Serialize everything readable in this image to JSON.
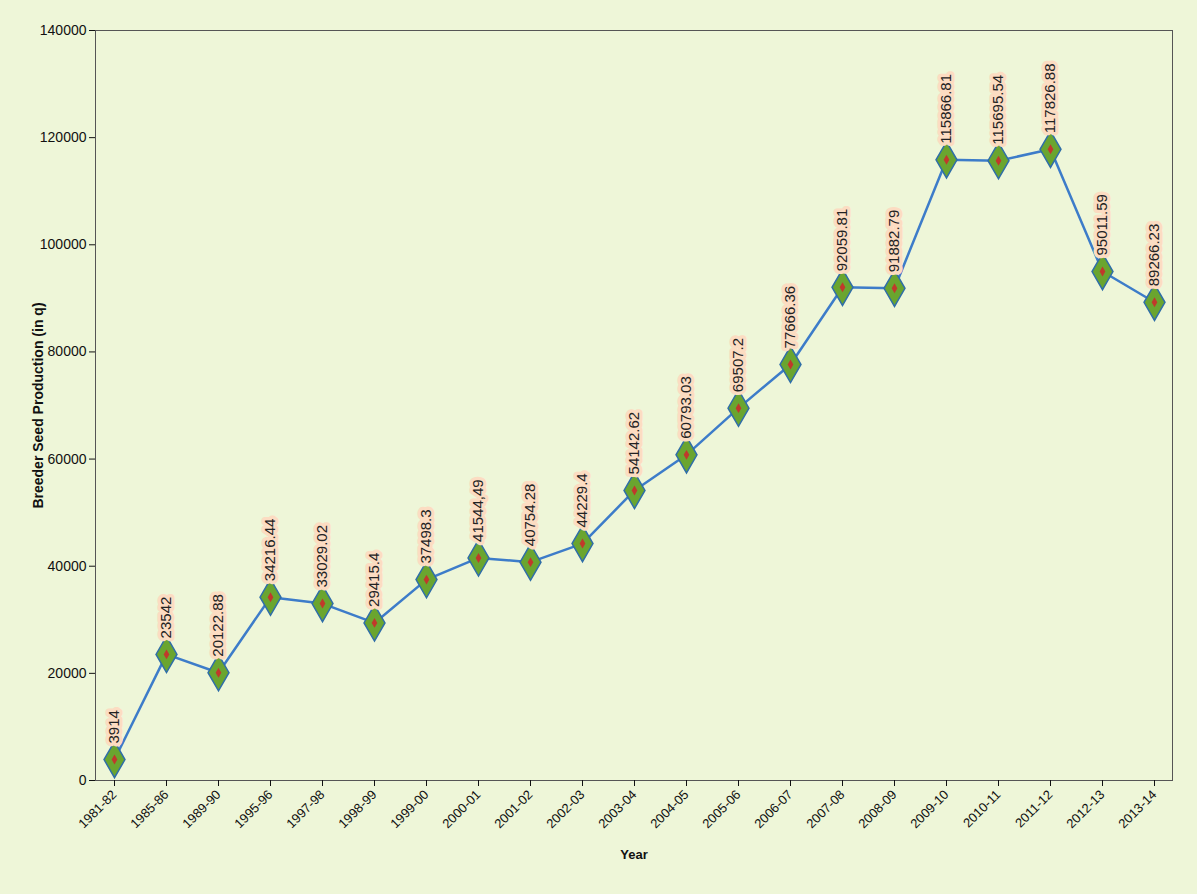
{
  "chart_data": {
    "type": "line",
    "x_label": "Year",
    "y_label": "Breeder Seed Production (in q)",
    "categories": [
      "1981-82",
      "1985-86",
      "1989-90",
      "1995-96",
      "1997-98",
      "1998-99",
      "1999-00",
      "2000-01",
      "2001-02",
      "2002-03",
      "2003-04",
      "2004-05",
      "2005-06",
      "2006-07",
      "2007-08",
      "2008-09",
      "2009-10",
      "2010-11",
      "2011-12",
      "2012-13",
      "2013-14"
    ],
    "values": [
      3914,
      23542,
      20122.88,
      34216.44,
      33029.02,
      29415.4,
      37498.3,
      41544.49,
      40754.28,
      44229.4,
      54142.62,
      60793.03,
      69507.2,
      77666.36,
      92059.81,
      91882.79,
      115866.81,
      115695.54,
      117826.88,
      95011.59,
      89266.23
    ],
    "value_labels": [
      "3914",
      "23542",
      "20122.88",
      "34216.44",
      "33029.02",
      "29415.4",
      "37498.3",
      "41544,49",
      "40754.28",
      "44229.4",
      "54142.62",
      "60793.03",
      "69507.2",
      "77666.36",
      "92059.81",
      "91882.79",
      "115866.81",
      "115695.54",
      "117826.88",
      "95011.59",
      "89266.23"
    ],
    "color": "#3d7cc9",
    "marker": "diamond",
    "ylim": [
      0,
      140000
    ],
    "yticks": [
      0,
      20000,
      40000,
      60000,
      80000,
      100000,
      120000,
      140000
    ],
    "grid": false,
    "data_labels": true
  }
}
